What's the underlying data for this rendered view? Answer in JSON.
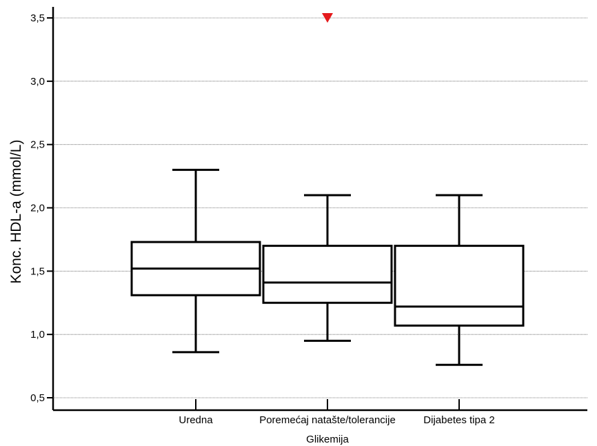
{
  "chart_data": {
    "type": "boxplot",
    "title": "",
    "xlabel": "Glikemija",
    "ylabel": "Konc. HDL-a (mmol/L)",
    "ylim": [
      0.45,
      3.6
    ],
    "y_ticks": [
      {
        "value": 0.5,
        "label": "0,5"
      },
      {
        "value": 1.0,
        "label": "1,0"
      },
      {
        "value": 1.5,
        "label": "1,5"
      },
      {
        "value": 2.0,
        "label": "2,0"
      },
      {
        "value": 2.5,
        "label": "2,5"
      },
      {
        "value": 3.0,
        "label": "3,0"
      },
      {
        "value": 3.5,
        "label": "3,5"
      }
    ],
    "grid": true,
    "categories": [
      "Uredna",
      "Poremećaj natašte/tolerancije",
      "Dijabetes tipa 2"
    ],
    "boxes": [
      {
        "category": "Uredna",
        "min": 0.86,
        "q1": 1.31,
        "median": 1.52,
        "q3": 1.73,
        "max": 2.3,
        "outliers": []
      },
      {
        "category": "Poremećaj natašte/tolerancije",
        "min": 0.95,
        "q1": 1.25,
        "median": 1.41,
        "q3": 1.7,
        "max": 2.1,
        "outliers": [
          3.5
        ]
      },
      {
        "category": "Dijabetes tipa 2",
        "min": 0.76,
        "q1": 1.07,
        "median": 1.22,
        "q3": 1.7,
        "max": 2.1,
        "outliers": []
      }
    ],
    "outlier_color": "#e41a1c"
  }
}
